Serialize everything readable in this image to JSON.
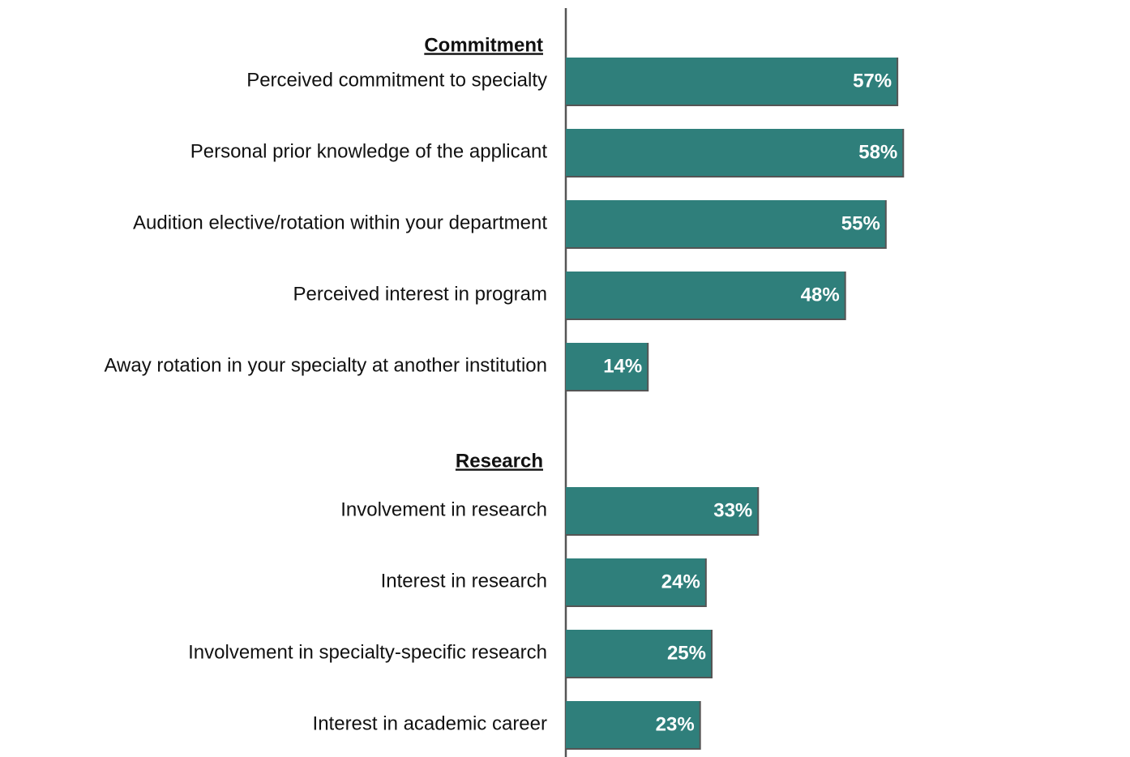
{
  "chart_data": {
    "type": "bar",
    "color": "#2f7f7b",
    "groups": [
      {
        "name": "Commitment",
        "categories": [
          "Perceived commitment to specialty",
          "Personal prior knowledge of the applicant",
          "Audition elective/rotation within your department",
          "Perceived interest in program",
          "Away rotation in your specialty at another institution"
        ],
        "values": [
          57,
          58,
          55,
          48,
          14
        ],
        "value_labels": [
          "57%",
          "58%",
          "55%",
          "48%",
          "14%"
        ]
      },
      {
        "name": "Research",
        "categories": [
          "Involvement in research",
          "Interest in research",
          "Involvement in specialty-specific research",
          "Interest in academic career"
        ],
        "values": [
          33,
          24,
          25,
          23
        ],
        "value_labels": [
          "33%",
          "24%",
          "25%",
          "23%"
        ]
      }
    ]
  }
}
